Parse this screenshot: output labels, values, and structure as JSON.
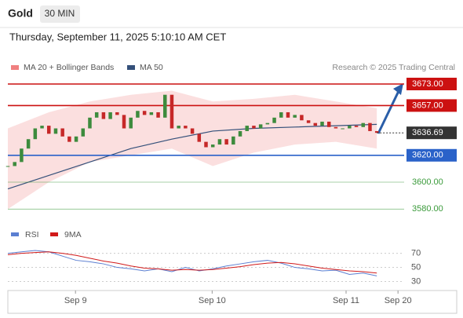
{
  "header": {
    "symbol": "Gold",
    "interval": "30 MIN",
    "timestamp": "Thursday, September 11, 2025 5:10:10 AM CET",
    "credit": "Research © 2025 Trading Central"
  },
  "chart_data": [
    {
      "type": "candlestick",
      "xlim": [
        0,
        58
      ],
      "ylim": [
        3572,
        3680
      ],
      "closes": [
        3612,
        3615,
        3625,
        3632,
        3640,
        3642,
        3636,
        3640,
        3634,
        3630,
        3634,
        3640,
        3648,
        3652,
        3647,
        3652,
        3650,
        3640,
        3648,
        3653,
        3650,
        3652,
        3648,
        3665,
        3640,
        3642,
        3640,
        3636,
        3630,
        3626,
        3628,
        3632,
        3628,
        3634,
        3638,
        3642,
        3640,
        3643,
        3644,
        3648,
        3652,
        3648,
        3650,
        3646,
        3644,
        3642,
        3645,
        3641,
        3640,
        3640,
        3642,
        3641,
        3644,
        3638,
        3636.69
      ],
      "up_color": "#3d8b3d",
      "down_color": "#c62828",
      "overlays": [
        {
          "name": "MA 20 + Bollinger Bands",
          "color": "#f08080",
          "x": [
            0,
            6,
            12,
            18,
            24,
            30,
            36,
            42,
            48,
            54
          ],
          "upper": [
            3640,
            3652,
            3660,
            3665,
            3668,
            3660,
            3662,
            3665,
            3660,
            3655
          ],
          "lower": [
            3580,
            3600,
            3615,
            3620,
            3625,
            3612,
            3622,
            3628,
            3630,
            3625
          ]
        },
        {
          "name": "MA 50",
          "color": "#34507a",
          "x": [
            0,
            6,
            12,
            18,
            24,
            30,
            36,
            42,
            48,
            54
          ],
          "values": [
            3595,
            3605,
            3615,
            3625,
            3632,
            3638,
            3640,
            3641,
            3642,
            3643
          ]
        }
      ],
      "levels": [
        {
          "value": 3673,
          "label": "3673.00"
        },
        {
          "value": 3657,
          "label": "3657.00"
        },
        {
          "value": 3620,
          "label": "3620.00"
        },
        {
          "value": 3600,
          "label": "3600.00"
        },
        {
          "value": 3580,
          "label": "3580.00"
        }
      ],
      "level_colors": [
        "#cc1111",
        "#cc1111",
        "#2a62c9",
        "#3a9a3a",
        "#3a9a3a"
      ],
      "last_price": 3636.69
    },
    {
      "type": "line",
      "xlim": [
        0,
        58
      ],
      "ylim": [
        15,
        84
      ],
      "yticks": [
        70,
        50,
        30
      ],
      "xticks": [
        {
          "value": 9.9,
          "label": "Sep 9"
        },
        {
          "value": 29.9,
          "label": "Sep 10"
        },
        {
          "value": 49.5,
          "label": "Sep 11"
        },
        {
          "value": 57.1,
          "label": "Sep 20"
        }
      ],
      "x": [
        0,
        2,
        4,
        6,
        8,
        10,
        12,
        14,
        16,
        18,
        20,
        22,
        24,
        26,
        28,
        30,
        32,
        34,
        36,
        38,
        40,
        42,
        44,
        46,
        48,
        50,
        52,
        54
      ],
      "series": [
        {
          "name": "RSI",
          "color": "#5b7fd1",
          "values": [
            70,
            72,
            74,
            72,
            66,
            60,
            58,
            55,
            50,
            48,
            45,
            48,
            44,
            50,
            45,
            48,
            52,
            55,
            58,
            60,
            56,
            50,
            48,
            45,
            46,
            40,
            42,
            38
          ]
        },
        {
          "name": "9MA",
          "color": "#d11a1a",
          "values": [
            68,
            70,
            71,
            72,
            70,
            67,
            63,
            59,
            56,
            52,
            49,
            48,
            46,
            47,
            46,
            47,
            49,
            51,
            54,
            56,
            57,
            55,
            52,
            49,
            47,
            45,
            44,
            42
          ]
        }
      ]
    }
  ]
}
